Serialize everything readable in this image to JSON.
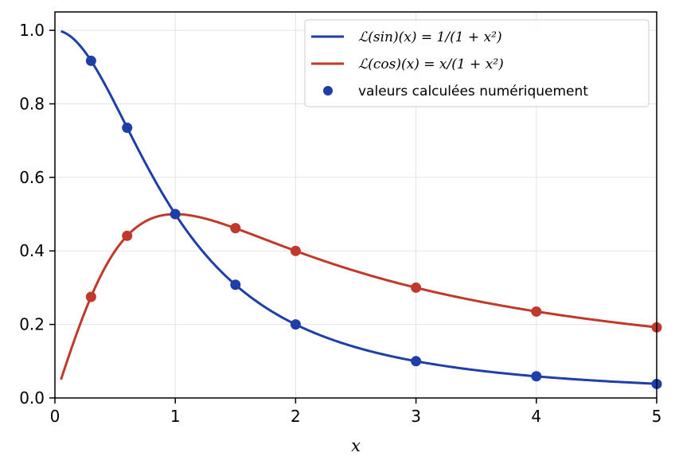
{
  "chart_data": {
    "type": "line",
    "xlabel": "x",
    "ylabel": "",
    "xlim": [
      0,
      5
    ],
    "ylim": [
      0,
      1.05
    ],
    "x_ticks": [
      0,
      1,
      2,
      3,
      4,
      5
    ],
    "x_tick_labels": [
      "0",
      "1",
      "2",
      "3",
      "4",
      "5"
    ],
    "y_ticks": [
      0.0,
      0.2,
      0.4,
      0.6,
      0.8,
      1.0
    ],
    "y_tick_labels": [
      "0.0",
      "0.2",
      "0.4",
      "0.6",
      "0.8",
      "1.0"
    ],
    "grid": true,
    "legend_position": "top-right",
    "series": [
      {
        "name": "ℒ(sin)(x) = 1/(1 + x²)",
        "kind": "line",
        "function": "1/(1+x^2)",
        "x_range": [
          0.05,
          5
        ],
        "color": "#1f3fa8",
        "x": [
          0.05,
          0.3,
          0.6,
          1.0,
          1.5,
          2.0,
          3.0,
          4.0,
          5.0
        ],
        "y": [
          0.998,
          0.917,
          0.735,
          0.5,
          0.308,
          0.2,
          0.1,
          0.059,
          0.038
        ]
      },
      {
        "name": "ℒ(cos)(x) = x/(1 + x²)",
        "kind": "line",
        "function": "x/(1+x^2)",
        "x_range": [
          0.05,
          5
        ],
        "color": "#c0392b",
        "x": [
          0.05,
          0.3,
          0.6,
          1.0,
          1.5,
          2.0,
          3.0,
          4.0,
          5.0
        ],
        "y": [
          0.05,
          0.275,
          0.441,
          0.5,
          0.462,
          0.4,
          0.3,
          0.235,
          0.192
        ]
      },
      {
        "name": "valeurs calculées numériquement",
        "kind": "points",
        "color": "#1f3fa8",
        "points_sin": {
          "x": [
            0.3,
            0.6,
            1.0,
            1.5,
            2.0,
            3.0,
            4.0,
            5.0
          ],
          "y": [
            0.917,
            0.735,
            0.5,
            0.308,
            0.2,
            0.1,
            0.059,
            0.038
          ]
        },
        "points_cos": {
          "color": "#c0392b",
          "x": [
            0.3,
            0.6,
            1.0,
            1.5,
            2.0,
            3.0,
            4.0,
            5.0
          ],
          "y": [
            0.275,
            0.441,
            0.5,
            0.462,
            0.4,
            0.3,
            0.235,
            0.192
          ]
        }
      }
    ]
  }
}
